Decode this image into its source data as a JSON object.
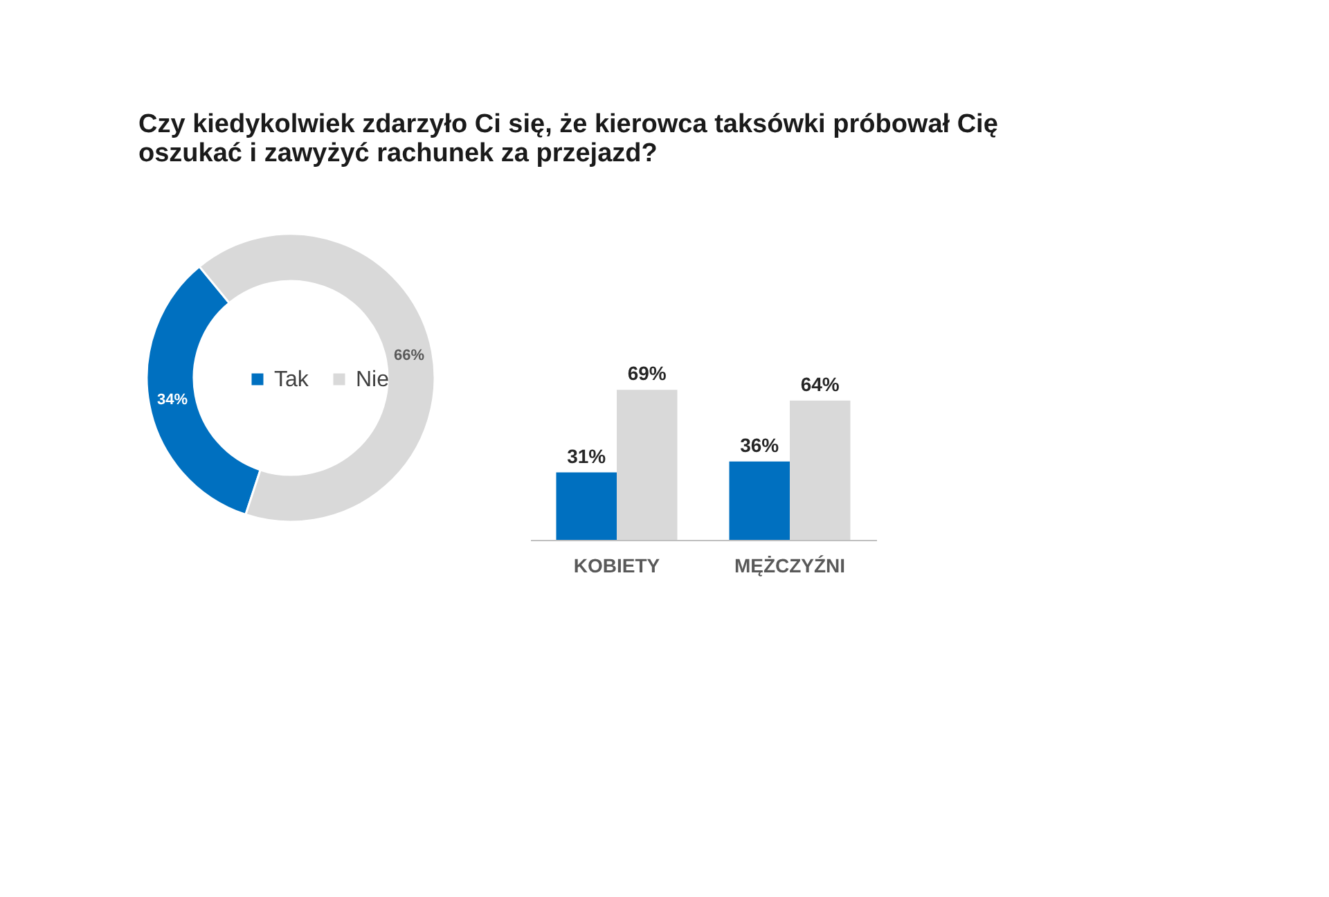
{
  "chart_data": [
    {
      "type": "donut",
      "title": "Czy kiedykolwiek zdarzyło Ci się, że kierowca taksówki próbował Cię\noszukać i zawyżyć rachunek za przejazd?",
      "categories": [
        "Tak",
        "Nie"
      ],
      "values": [
        34,
        66
      ],
      "colors": [
        "#0070c0",
        "#d9d9d9"
      ],
      "value_labels": [
        "34%",
        "66%"
      ],
      "legend": "center"
    },
    {
      "type": "bar",
      "categories": [
        "KOBIETY",
        "MĘŻCZYŹNI"
      ],
      "series": [
        {
          "color": "#0070c0",
          "values": [
            31,
            36
          ],
          "value_labels": [
            "31%",
            "36%"
          ]
        },
        {
          "color": "#d9d9d9",
          "values": [
            69,
            64
          ],
          "value_labels": [
            "69%",
            "64%"
          ]
        }
      ]
    }
  ]
}
